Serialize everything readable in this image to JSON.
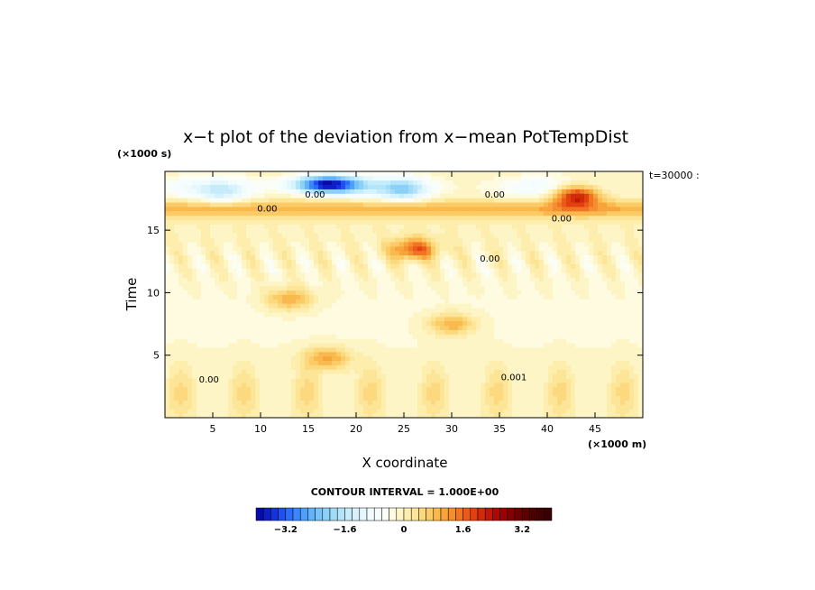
{
  "chart_data": {
    "type": "heatmap",
    "title": "x−t plot of the deviation from x−mean PotTempDist",
    "xlabel": "X coordinate",
    "ylabel": "Time",
    "x_unit": "(×1000 m)",
    "y_unit": "(×1000 s)",
    "time_stamp": "t=30000 :",
    "xlim": [
      0,
      50
    ],
    "ylim": [
      0,
      19.7
    ],
    "x_ticks": [
      5,
      10,
      15,
      20,
      25,
      30,
      35,
      40,
      45
    ],
    "y_ticks": [
      5,
      10,
      15
    ],
    "contour_interval_text": "CONTOUR INTERVAL = 1.000E+00",
    "contour_labels": [
      {
        "text": "0.00",
        "x": 15.7,
        "y": 17.6
      },
      {
        "text": "0.00",
        "x": 10.7,
        "y": 16.5
      },
      {
        "text": "0.00",
        "x": 34.5,
        "y": 17.6
      },
      {
        "text": "0.00",
        "x": 41.5,
        "y": 15.7
      },
      {
        "text": "0.00",
        "x": 34.0,
        "y": 12.5
      },
      {
        "text": "0.00",
        "x": 4.6,
        "y": 2.8
      },
      {
        "text": "0.001",
        "x": 36.5,
        "y": 3.0
      }
    ],
    "colorbar": {
      "range": [
        -4.0,
        4.0
      ],
      "step": 0.2,
      "tick_values": [
        -3.2,
        -1.6,
        0,
        1.6,
        3.2
      ],
      "tick_labels": [
        "−3.2",
        "−1.6",
        "0",
        "1.6",
        "3.2"
      ]
    },
    "field_features": [
      {
        "kind": "negative_blob",
        "x": 17.0,
        "y": 18.7,
        "amplitude": -3.6
      },
      {
        "kind": "negative_blob",
        "x": 25.0,
        "y": 18.3,
        "amplitude": -1.4
      },
      {
        "kind": "negative_blob",
        "x": 6.0,
        "y": 18.0,
        "amplitude": -0.8
      },
      {
        "kind": "positive_band",
        "y": 16.7,
        "amplitude": 1.0
      },
      {
        "kind": "positive_blob",
        "x": 43.0,
        "y": 17.8,
        "amplitude": 2.6
      },
      {
        "kind": "positive_blob",
        "x": 26.0,
        "y": 13.5,
        "amplitude": 1.8
      },
      {
        "kind": "positive_blob",
        "x": 13.0,
        "y": 9.5,
        "amplitude": 1.2
      },
      {
        "kind": "positive_blob",
        "x": 17.0,
        "y": 4.8,
        "amplitude": 1.2
      },
      {
        "kind": "positive_blob",
        "x": 30.0,
        "y": 7.5,
        "amplitude": 1.2
      }
    ]
  },
  "colors": {
    "palette": [
      "#0a0aa8",
      "#0d1ec4",
      "#1433dc",
      "#1f4ff0",
      "#2b6cf8",
      "#3a87fb",
      "#4d9ffb",
      "#60b3fa",
      "#75c3f8",
      "#8ad0f7",
      "#a0dbf8",
      "#b4e4fa",
      "#c6ecfb",
      "#d6f2fc",
      "#e4f7fd",
      "#f0fbfe",
      "#f5fdff",
      "#fbfef6",
      "#fefbe0",
      "#fef5c6",
      "#fdeeae",
      "#fde598",
      "#fcd97f",
      "#fbcb66",
      "#fab94f",
      "#f8a43d",
      "#f58e2f",
      "#f17422",
      "#eb5a18",
      "#e0410f",
      "#d12b0a",
      "#c01706",
      "#ad0904",
      "#980202",
      "#840000",
      "#700000",
      "#5e0000",
      "#4e0000",
      "#420000",
      "#380000"
    ]
  }
}
